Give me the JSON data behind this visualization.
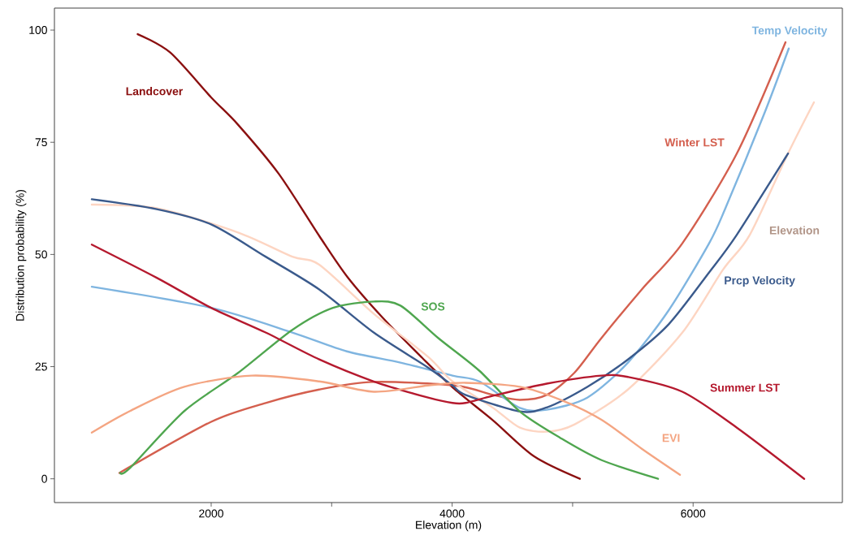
{
  "chart_data": {
    "type": "line",
    "xlabel": "Elevation (m)",
    "ylabel": "Distribution probability (%)",
    "xlim": [
      699,
      7239
    ],
    "ylim": [
      -5.3,
      104.9
    ],
    "xticks": [
      2000,
      {
        "value": 3000,
        "label": null
      },
      4000,
      {
        "value": 5000,
        "label": null
      },
      6000
    ],
    "yticks": [
      0,
      25,
      50,
      75,
      100
    ],
    "line_style": "solid",
    "marker": "none",
    "grid": false,
    "series": [
      {
        "name": "Landcover",
        "color": "#8b1010",
        "x": [
          1390,
          1660,
          2000,
          2220,
          2560,
          2900,
          3130,
          3420,
          3750,
          4020,
          4340,
          4680,
          5060
        ],
        "values": [
          99.1,
          95,
          85,
          79,
          68,
          54,
          45,
          36,
          27,
          20,
          13,
          5,
          0
        ]
      },
      {
        "name": "Winter LST",
        "color": "#d45f4e",
        "x": [
          1238,
          2000,
          2452,
          2897,
          3349,
          4023,
          4340,
          4562,
          4785,
          5014,
          5237,
          5574,
          5911,
          6363,
          6767
        ],
        "values": [
          1.3,
          12.7,
          16.9,
          19.9,
          21.6,
          20.8,
          18.7,
          17.6,
          18.7,
          23.6,
          31.3,
          42.2,
          52.5,
          72.5,
          97.3
        ]
      },
      {
        "name": "Temp Velocity",
        "color": "#7fb5e0",
        "x": [
          1009,
          2000,
          2674,
          3126,
          3571,
          4003,
          4225,
          4562,
          4785,
          5122,
          5459,
          5796,
          6133,
          6268,
          6585,
          6794
        ],
        "values": [
          42.8,
          38.1,
          32.6,
          28.4,
          25.9,
          23.0,
          21.7,
          15.8,
          15.4,
          18.1,
          25.9,
          37.5,
          52.5,
          60.3,
          81,
          95.9
        ]
      },
      {
        "name": "Elevation",
        "color": "#fdd5c2",
        "x": [
          1009,
          1548,
          2223,
          2674,
          2897,
          3349,
          3800,
          4003,
          4340,
          4562,
          4785,
          5014,
          5459,
          5911,
          6248,
          6471,
          6788,
          7003
        ],
        "values": [
          61.1,
          60.3,
          54.9,
          49.5,
          47.7,
          36.8,
          27.2,
          21.7,
          15.8,
          11.4,
          10.5,
          12.1,
          19.9,
          32.6,
          46.6,
          54.4,
          72.5,
          83.9
        ]
      },
      {
        "name": "Prcp Velocity",
        "color": "#3a5a8c",
        "x": [
          1009,
          1548,
          2000,
          2452,
          2897,
          3349,
          3800,
          4003,
          4111,
          4562,
          4785,
          5122,
          5459,
          5796,
          6133,
          6363,
          6788
        ],
        "values": [
          62.3,
          60.1,
          56.7,
          49.5,
          42.2,
          32.6,
          24.8,
          20.8,
          18.7,
          15,
          15.9,
          20.5,
          26.6,
          34.4,
          46,
          54.4,
          72.5
        ]
      },
      {
        "name": "SOS",
        "color": "#4fa64f",
        "x": [
          1245,
          1326,
          1777,
          2223,
          2674,
          3011,
          3349,
          3571,
          3888,
          4225,
          4562,
          4899,
          5237,
          5709
        ],
        "values": [
          1.3,
          2.4,
          15.1,
          23.6,
          33.2,
          38.1,
          39.5,
          38.6,
          31.3,
          24.1,
          15.0,
          9.1,
          4.2,
          0
        ]
      },
      {
        "name": "Summer LST",
        "color": "#b5192e",
        "x": [
          1009,
          1548,
          2000,
          2452,
          2897,
          3349,
          3800,
          4003,
          4111,
          4340,
          4785,
          5237,
          5459,
          5911,
          6363,
          6922
        ],
        "values": [
          52.2,
          44.8,
          38.1,
          32.6,
          26.6,
          21.7,
          18.1,
          16.9,
          16.9,
          18.5,
          21.2,
          23.0,
          22.7,
          19.4,
          11.4,
          0
        ]
      },
      {
        "name": "EVI",
        "color": "#f4a582",
        "x": [
          1009,
          1326,
          1777,
          2337,
          2897,
          3349,
          3800,
          4111,
          4562,
          4899,
          5237,
          5574,
          5891
        ],
        "values": [
          10.3,
          15.1,
          20.5,
          23,
          21.7,
          19.4,
          20.8,
          21.4,
          20.5,
          17.6,
          13.2,
          6.7,
          0.9
        ]
      }
    ]
  }
}
